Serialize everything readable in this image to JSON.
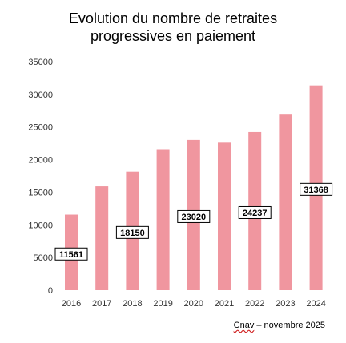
{
  "chart_data": {
    "type": "bar",
    "title": [
      "Evolution du nombre de retraites",
      "progressives en paiement"
    ],
    "categories": [
      "2016",
      "2017",
      "2018",
      "2019",
      "2020",
      "2021",
      "2022",
      "2023",
      "2024"
    ],
    "values": [
      11561,
      15900,
      18150,
      21600,
      23020,
      22600,
      24237,
      26900,
      31368
    ],
    "data_labels": {
      "2016": "11561",
      "2018": "18150",
      "2020": "23020",
      "2022": "24237",
      "2024": "31368"
    },
    "ylim": [
      0,
      35000
    ],
    "yticks": [
      "0",
      "5000",
      "10000",
      "15000",
      "20000",
      "25000",
      "30000",
      "35000"
    ],
    "grid": false,
    "bar_color": "#f0969f",
    "label_border_color": "#000000"
  },
  "source": {
    "brand": "Cnav",
    "rest": " – novembre 2025"
  }
}
